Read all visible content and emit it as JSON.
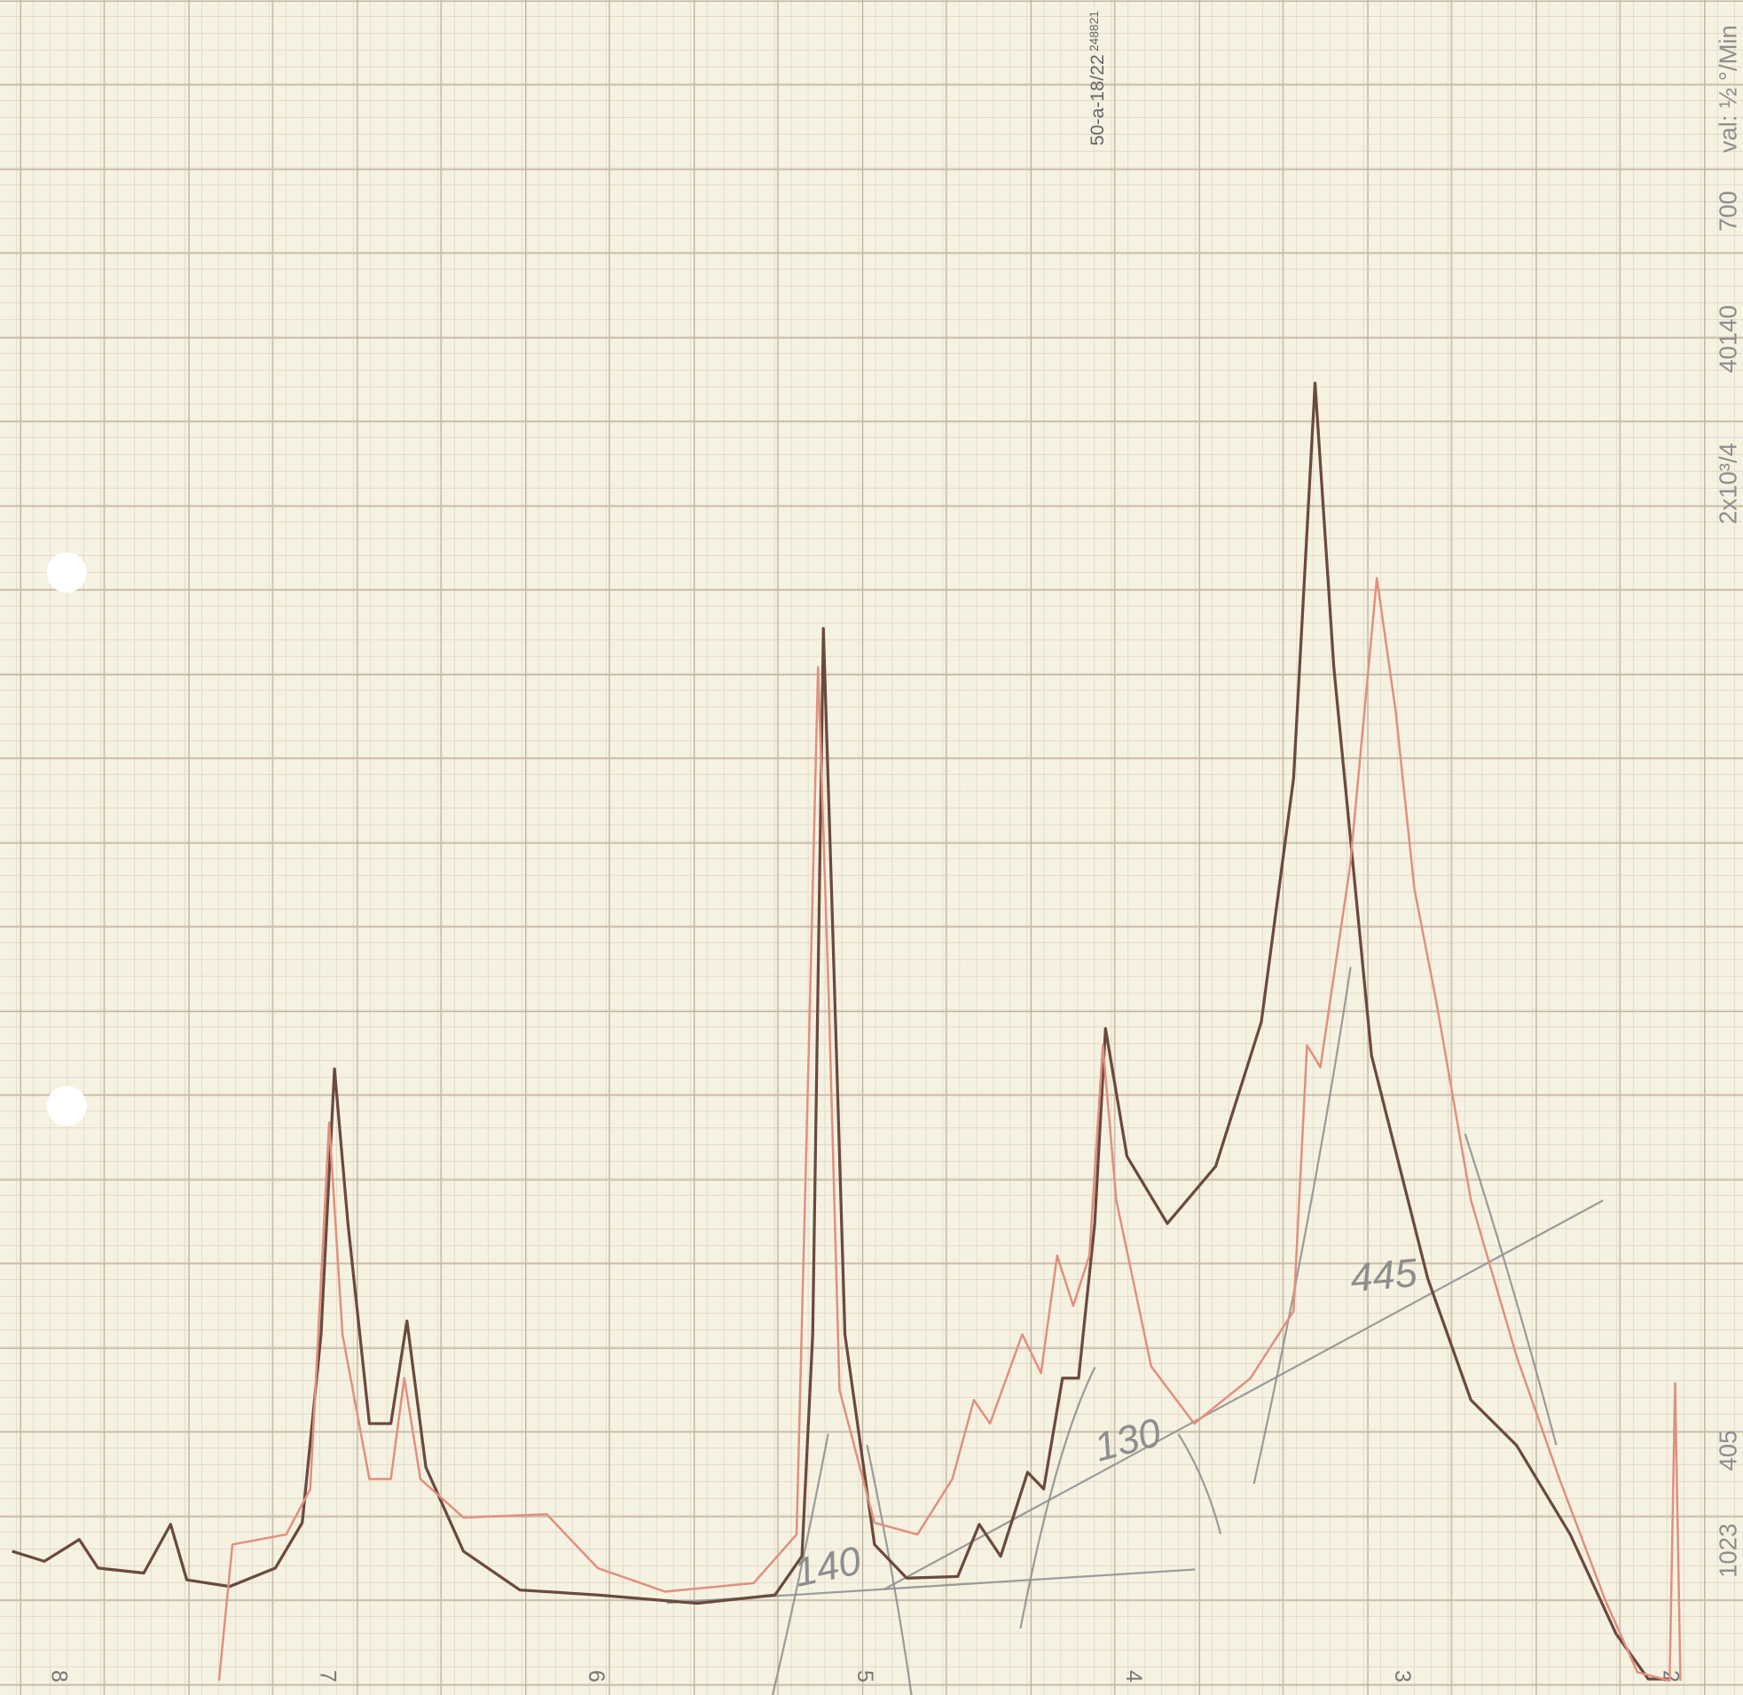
{
  "chart_data": {
    "type": "line",
    "xlim": [
      8.215,
      1.727
    ],
    "ylim": [
      0,
      100
    ],
    "xticks": [
      8,
      7,
      6,
      5,
      4,
      3,
      2
    ],
    "series": [
      {
        "color": "#6b4a3e",
        "x": [
          8.17,
          8.05,
          7.92,
          7.85,
          7.68,
          7.58,
          7.52,
          7.36,
          7.19,
          7.09,
          7.02,
          6.97,
          6.92,
          6.84,
          6.76,
          6.7,
          6.63,
          6.49,
          6.28,
          5.99,
          5.62,
          5.33,
          5.23,
          5.19,
          5.15,
          5.12,
          5.07,
          4.96,
          4.84,
          4.65,
          4.57,
          4.49,
          4.39,
          4.33,
          4.26,
          4.2,
          4.14,
          4.1,
          4.02,
          3.87,
          3.69,
          3.52,
          3.4,
          3.32,
          3.25,
          3.11,
          2.9,
          2.74,
          2.57,
          2.37,
          2.2,
          2.08,
          2.0
        ],
        "values": [
          7.7,
          7.1,
          8.4,
          6.7,
          6.4,
          9.3,
          6.0,
          5.6,
          6.7,
          9.4,
          20.6,
          36.4,
          27.2,
          15.3,
          15.3,
          21.4,
          12.7,
          7.7,
          5.4,
          5.1,
          4.6,
          5.1,
          7.4,
          20.6,
          62.6,
          47.1,
          20.6,
          8.1,
          6.1,
          6.2,
          9.3,
          7.4,
          12.4,
          11.4,
          18.0,
          18.0,
          27.2,
          38.8,
          31.2,
          27.2,
          30.6,
          39.2,
          53.7,
          77.2,
          60.3,
          37.2,
          23.9,
          16.7,
          14.0,
          8.7,
          2.8,
          0.1,
          0.1
        ]
      },
      {
        "color": "#e0907e",
        "x": [
          7.4,
          7.35,
          7.15,
          7.06,
          6.99,
          6.94,
          6.84,
          6.76,
          6.71,
          6.65,
          6.49,
          6.18,
          5.99,
          5.74,
          5.41,
          5.25,
          5.2,
          5.17,
          5.13,
          5.09,
          4.96,
          4.8,
          4.67,
          4.59,
          4.53,
          4.41,
          4.34,
          4.28,
          4.22,
          4.16,
          4.11,
          4.06,
          3.93,
          3.77,
          3.56,
          3.4,
          3.35,
          3.3,
          3.19,
          3.09,
          3.02,
          2.95,
          2.87,
          2.74,
          2.57,
          2.41,
          2.24,
          2.12,
          2.0,
          1.98,
          1.96
        ],
        "values": [
          0,
          8.1,
          8.7,
          11.4,
          33.2,
          20.6,
          12.0,
          12.0,
          18.0,
          12.0,
          9.7,
          9.9,
          6.7,
          5.3,
          5.8,
          8.7,
          40.5,
          60.3,
          40.5,
          17.3,
          9.4,
          8.7,
          12.0,
          16.7,
          15.3,
          20.6,
          18.3,
          25.3,
          22.3,
          25.3,
          37.8,
          28.6,
          18.7,
          15.3,
          18.0,
          22.0,
          37.8,
          36.5,
          48.4,
          65.6,
          57.7,
          47.1,
          40.5,
          28.6,
          19.3,
          12.0,
          4.8,
          0.5,
          0,
          17.7,
          0
        ]
      }
    ],
    "annotations": [
      "140",
      "130",
      "445"
    ],
    "margin_notes": [
      "50-a-18/22",
      "248821",
      "2x10³/4",
      "40140",
      "700",
      "val: ½ °/Min",
      "405",
      "1023"
    ]
  }
}
